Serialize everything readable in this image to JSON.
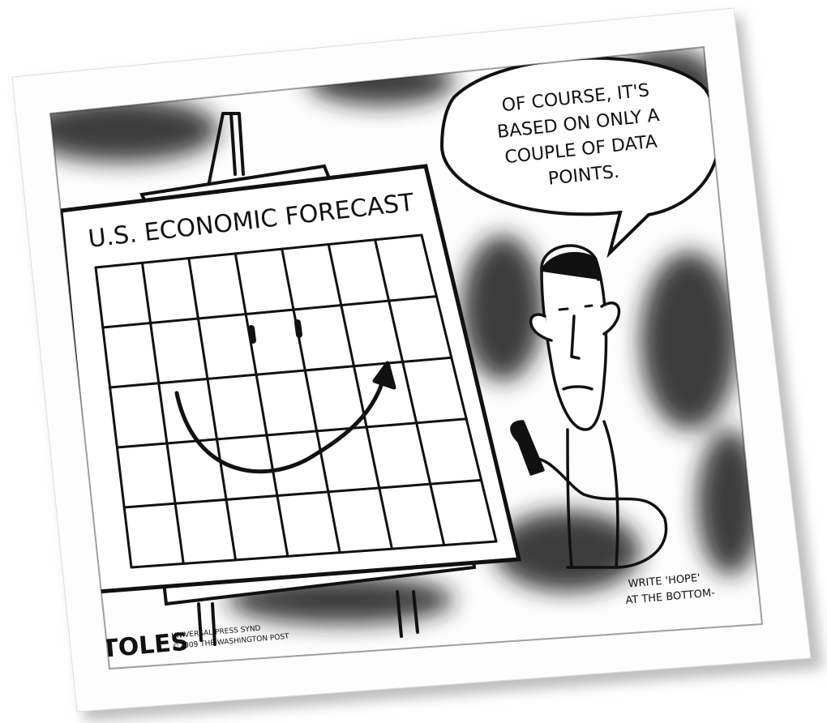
{
  "easel": {
    "title": "U.S. ECONOMIC FORECAST"
  },
  "speech_bubble": {
    "lines": [
      "OF COURSE, IT'S",
      "BASED ON ONLY A",
      "COUPLE OF DATA",
      "POINTS."
    ]
  },
  "caption": {
    "lines": [
      "WRITE 'HOPE'",
      "AT THE BOTTOM-"
    ]
  },
  "signature": {
    "artist": "TOLES",
    "credit_lines": [
      "UNIVERSAL PRESS SYND",
      "©2009 THE WASHINGTON POST"
    ]
  }
}
